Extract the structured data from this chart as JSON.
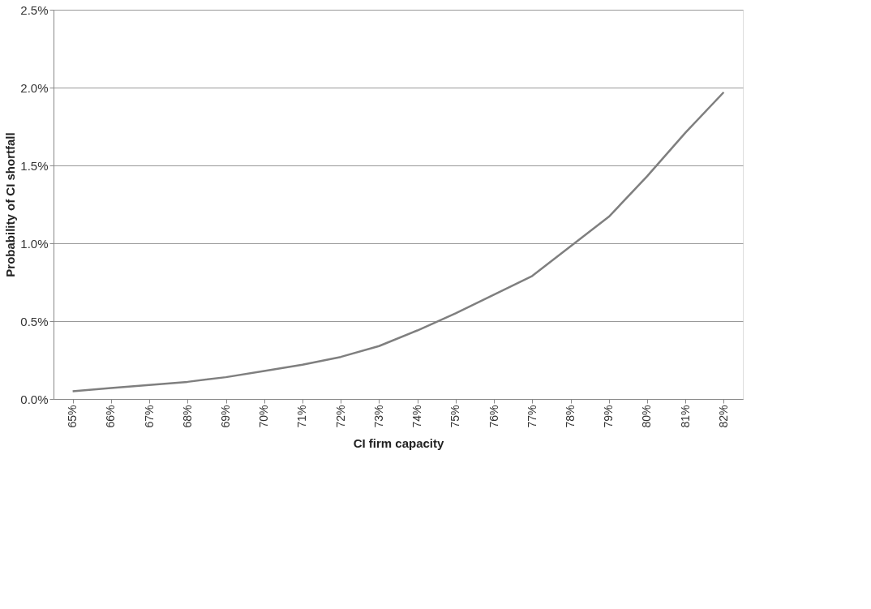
{
  "chart_data": {
    "type": "line",
    "xlabel": "CI firm capacity",
    "ylabel": "Probability of CI shortfall",
    "categories": [
      "65%",
      "66%",
      "67%",
      "68%",
      "69%",
      "70%",
      "71%",
      "72%",
      "73%",
      "74%",
      "75%",
      "76%",
      "77%",
      "78%",
      "79%",
      "80%",
      "81%",
      "82%"
    ],
    "series": [
      {
        "color": "#7f7f7f",
        "values": [
          0.05,
          0.07,
          0.09,
          0.11,
          0.14,
          0.18,
          0.22,
          0.27,
          0.34,
          0.44,
          0.55,
          0.67,
          0.79,
          0.98,
          1.17,
          1.43,
          1.71,
          1.97
        ]
      }
    ],
    "ylim": [
      0,
      2.5
    ],
    "yticks": [
      {
        "value": 0,
        "label": "0.0%"
      },
      {
        "value": 0.5,
        "label": "0.5%"
      },
      {
        "value": 1,
        "label": "1.0%"
      },
      {
        "value": 1.5,
        "label": "1.5%"
      },
      {
        "value": 2,
        "label": "2.0%"
      },
      {
        "value": 2.5,
        "label": "2.5%"
      }
    ],
    "grid": "y",
    "marker": "none",
    "line_style": "solid",
    "legend": false
  }
}
